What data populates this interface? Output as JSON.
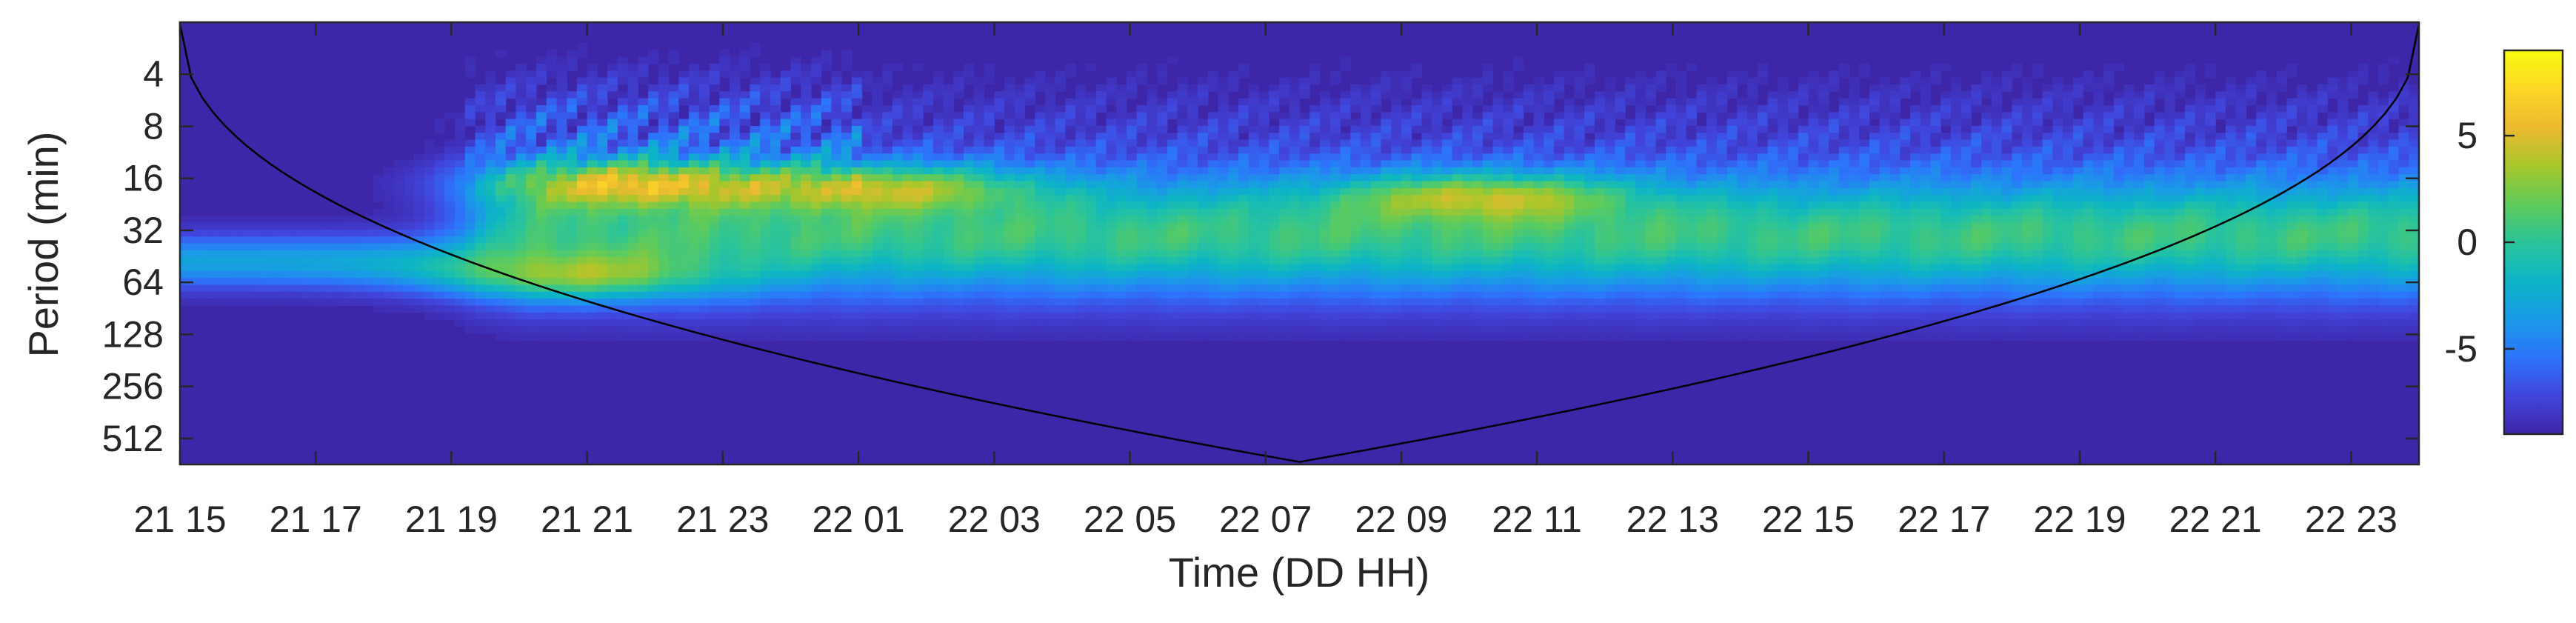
{
  "chart_data": {
    "type": "heatmap",
    "title": "",
    "xlabel": "Time (DD HH)",
    "ylabel": "Period (min)",
    "x_ticks": [
      "21 15",
      "21 17",
      "21 19",
      "21 21",
      "21 23",
      "22 01",
      "22 03",
      "22 05",
      "22 07",
      "22 09",
      "22 11",
      "22 13",
      "22 15",
      "22 17",
      "22 19",
      "22 21",
      "22 23"
    ],
    "x_range_hours": [
      15,
      48
    ],
    "y_scale": "log2",
    "y_ticks": [
      4,
      8,
      16,
      32,
      64,
      128,
      256,
      512
    ],
    "y_range": [
      2,
      724
    ],
    "colorbar": {
      "ticks": [
        5,
        0,
        -5
      ],
      "range": [
        -9,
        9
      ],
      "colormap": [
        "#3e26a8",
        "#4145dc",
        "#2d74fb",
        "#1a9ae6",
        "#0cb5c5",
        "#2bc49a",
        "#5fcb5a",
        "#a9c62b",
        "#edba30",
        "#fdd726",
        "#f9fb0e"
      ]
    },
    "features": [
      {
        "t": 21.6,
        "p": 17,
        "amp": 9,
        "desc": "peak"
      },
      {
        "t": 25.5,
        "p": 18,
        "amp": 7.5
      },
      {
        "t": 20.8,
        "p": 60,
        "amp": 6.5
      },
      {
        "t": 34.2,
        "p": 20,
        "amp": 7
      }
    ],
    "cone_of_influence": {
      "t_start": 15,
      "t_end": 48,
      "p_min_center": 700
    }
  }
}
